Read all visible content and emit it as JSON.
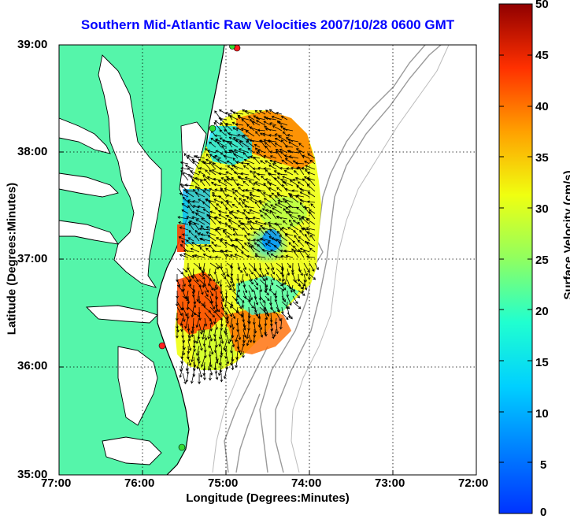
{
  "title": "Southern Mid-Atlantic Raw Velocities 2007/10/28 0600 GMT",
  "xaxis": {
    "label": "Longitude (Degrees:Minutes)",
    "ticks": [
      "77:00",
      "76:00",
      "75:00",
      "74:00",
      "73:00",
      "72:00"
    ]
  },
  "yaxis": {
    "label": "Latitude (Degrees:Minutes)",
    "ticks": [
      "39:00",
      "38:00",
      "37:00",
      "36:00",
      "35:00"
    ]
  },
  "colorbar": {
    "label": "Surface Velocity (cm/s)",
    "ticks": [
      "50",
      "45",
      "40",
      "35",
      "30",
      "25",
      "20",
      "15",
      "10",
      "5",
      "0"
    ],
    "min": 0,
    "max": 50
  },
  "colors": {
    "land": "#55f5aa",
    "title": "#0000ff",
    "station_red": "#ff2020",
    "station_green": "#33dd33"
  }
}
